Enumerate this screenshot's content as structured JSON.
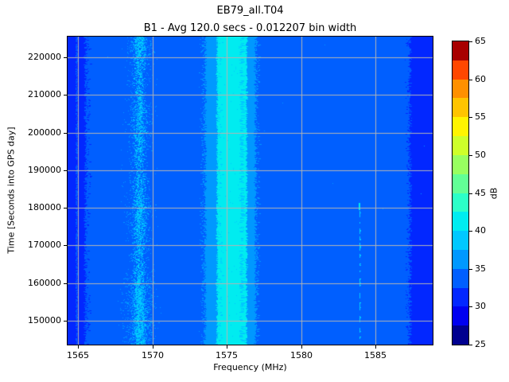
{
  "chart_data": {
    "type": "heatmap",
    "title": "EB79_all.T04",
    "subtitle": "B1 - Avg 120.0 secs - 0.012207 bin width",
    "xlabel": "Frequency (MHz)",
    "ylabel": "Time [Seconds into GPS day]",
    "x_range_mhz": [
      1564.3,
      1588.85
    ],
    "y_range_sec": [
      143650,
      225500
    ],
    "x_ticks": [
      1565,
      1570,
      1575,
      1580,
      1585
    ],
    "y_ticks": [
      150000,
      160000,
      170000,
      180000,
      190000,
      200000,
      210000,
      220000
    ],
    "grid": true,
    "grid_color": "#b4b4b4",
    "background_level_db": 33,
    "colorbar": {
      "label": "dB",
      "ticks": [
        25,
        30,
        35,
        40,
        45,
        50,
        55,
        60,
        65
      ],
      "range_db": [
        25,
        65
      ],
      "n_levels": 16,
      "level_step_db": 2.5,
      "level_colors": [
        "#00008f",
        "#0000f0",
        "#0227ff",
        "#005fff",
        "#0098ff",
        "#00c8ff",
        "#00ecf0",
        "#2cffc8",
        "#62ff96",
        "#98ff60",
        "#ceff2a",
        "#fff400",
        "#ffc400",
        "#ff9000",
        "#ff4700",
        "#a80000"
      ]
    },
    "features": [
      {
        "name": "dark-column-left-edge",
        "freq_mhz": [
          1564.3,
          1564.88
        ],
        "time_sec": "all",
        "level_db": 31
      },
      {
        "name": "dark-stripe-1565",
        "freq_mhz": [
          1564.95,
          1565.5
        ],
        "time_sec": "all",
        "level_db": 31
      },
      {
        "name": "speckle-band-1569",
        "freq_mhz": [
          1567.3,
          1570.0
        ],
        "core_mhz": [
          1568.6,
          1569.6
        ],
        "time_sec": "all",
        "level_db_range": [
          35,
          41
        ],
        "texture": "speckled"
      },
      {
        "name": "light-band-1574",
        "freq_mhz": [
          1573.55,
          1574.35
        ],
        "time_sec": "all",
        "level_db": 36
      },
      {
        "name": "bright-cyan-band-1575",
        "freq_mhz": [
          1574.35,
          1576.35
        ],
        "time_sec": "all",
        "level_db": 41,
        "texture": "speckled-streaks"
      },
      {
        "name": "light-band-1576",
        "freq_mhz": [
          1576.35,
          1576.95
        ],
        "time_sec": "all",
        "level_db": 36
      },
      {
        "name": "intermittent-line-1584",
        "freq_mhz": [
          1583.85,
          1583.98
        ],
        "time_sec": [
          143650,
          181500
        ],
        "level_db": 38,
        "texture": "dashed"
      },
      {
        "name": "dark-band-right-edge",
        "freq_mhz": [
          1587.35,
          1588.85
        ],
        "time_sec": "all",
        "level_db": 31
      }
    ]
  }
}
